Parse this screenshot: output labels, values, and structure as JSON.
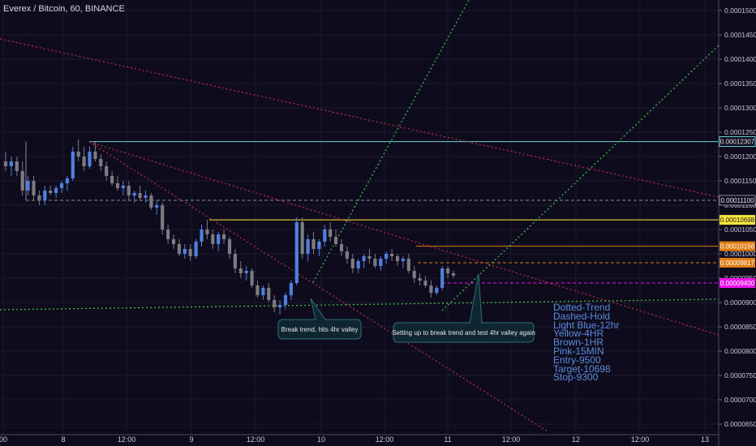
{
  "header": {
    "title": "Everex / Bitcoin, 60, BINANCE"
  },
  "colors": {
    "background": "#0e0b1c",
    "grid": "#1c1930",
    "candle_up": "#4f7fe0",
    "candle_down": "#7b7b80",
    "trend_red": "#c03040",
    "trend_green": "#3ccc44",
    "light_blue": "#6ed3d8",
    "yellow": "#ffe83c",
    "brown": "#e07c12",
    "pink": "#ee11ee",
    "dashed_gray": "#8c8c9c"
  },
  "chart_data": {
    "type": "candlestick",
    "title": "Everex / Bitcoin, 60, BINANCE",
    "y_axis": {
      "position": "right",
      "range": [
        6.45e-05,
        0.000151
      ],
      "ticks": [
        "0.00015000",
        "0.00014500",
        "0.00014000",
        "0.00013500",
        "0.00013000",
        "0.00012500",
        "0.00012000",
        "0.00011500",
        "0.00011000",
        "0.00010500",
        "0.00010000",
        "0.00009500",
        "0.00009000",
        "0.00008500",
        "0.00008000",
        "0.00007500",
        "0.00007000",
        "0.00006500"
      ]
    },
    "x_axis": {
      "ticks": [
        "00",
        "8",
        "12:00",
        "9",
        "12:00",
        "10",
        "12:00",
        "11",
        "12:00",
        "12",
        "12:00",
        "13"
      ]
    },
    "price_labels": [
      {
        "text": "0.00012307",
        "value": 0.00012307,
        "color": "light_blue"
      },
      {
        "text": "0.00011100",
        "value": 0.000111,
        "color": "dashed_gray"
      },
      {
        "text": "0.00010698",
        "value": 0.00010698,
        "color": "yellow"
      },
      {
        "text": "0.00010156",
        "value": 0.00010156,
        "color": "brown"
      },
      {
        "text": "0.00009817",
        "value": 9.817e-05,
        "color": "brown"
      },
      {
        "text": "0.00009400",
        "value": 9.4e-05,
        "color": "pink"
      }
    ],
    "candles": [
      {
        "o": 0.000119,
        "h": 0.000121,
        "l": 0.000117,
        "c": 0.000118
      },
      {
        "o": 0.000118,
        "h": 0.00012,
        "l": 0.000116,
        "c": 0.000119
      },
      {
        "o": 0.000119,
        "h": 0.00012,
        "l": 0.000116,
        "c": 0.000117
      },
      {
        "o": 0.000117,
        "h": 0.000119,
        "l": 0.000112,
        "c": 0.000113
      },
      {
        "o": 0.000113,
        "h": 0.000116,
        "l": 0.000112,
        "c": 0.000115
      },
      {
        "o": 0.000115,
        "h": 0.000116,
        "l": 0.000111,
        "c": 0.000112
      },
      {
        "o": 0.000112,
        "h": 0.000113,
        "l": 0.00011,
        "c": 0.000111
      },
      {
        "o": 0.000111,
        "h": 0.000114,
        "l": 0.00011,
        "c": 0.000113
      },
      {
        "o": 0.000113,
        "h": 0.000114,
        "l": 0.000112,
        "c": 0.0001125
      },
      {
        "o": 0.0001125,
        "h": 0.000114,
        "l": 0.0001115,
        "c": 0.0001135
      },
      {
        "o": 0.0001135,
        "h": 0.000115,
        "l": 0.0001125,
        "c": 0.0001145
      },
      {
        "o": 0.0001145,
        "h": 0.000116,
        "l": 0.000113,
        "c": 0.0001155
      },
      {
        "o": 0.0001155,
        "h": 0.000122,
        "l": 0.000115,
        "c": 0.000121
      },
      {
        "o": 0.000121,
        "h": 0.0001235,
        "l": 0.000119,
        "c": 0.00012
      },
      {
        "o": 0.00012,
        "h": 0.000122,
        "l": 0.000117,
        "c": 0.000118
      },
      {
        "o": 0.000118,
        "h": 0.000122,
        "l": 0.0001175,
        "c": 0.000121
      },
      {
        "o": 0.000121,
        "h": 0.000123,
        "l": 0.000119,
        "c": 0.0001195
      },
      {
        "o": 0.0001195,
        "h": 0.0001205,
        "l": 0.000117,
        "c": 0.000118
      },
      {
        "o": 0.000118,
        "h": 0.000119,
        "l": 0.000115,
        "c": 0.000116
      },
      {
        "o": 0.000116,
        "h": 0.000117,
        "l": 0.000114,
        "c": 0.0001145
      },
      {
        "o": 0.0001145,
        "h": 0.000116,
        "l": 0.000113,
        "c": 0.0001135
      },
      {
        "o": 0.0001135,
        "h": 0.000115,
        "l": 0.000112,
        "c": 0.000114
      },
      {
        "o": 0.000114,
        "h": 0.000115,
        "l": 0.000111,
        "c": 0.000112
      },
      {
        "o": 0.000112,
        "h": 0.000113,
        "l": 0.0001105,
        "c": 0.0001125
      },
      {
        "o": 0.0001125,
        "h": 0.000114,
        "l": 0.000111,
        "c": 0.0001115
      },
      {
        "o": 0.0001115,
        "h": 0.000113,
        "l": 0.0001105,
        "c": 0.000112
      },
      {
        "o": 0.000112,
        "h": 0.0001125,
        "l": 0.000109,
        "c": 0.0001095
      },
      {
        "o": 0.0001095,
        "h": 0.000111,
        "l": 0.000108,
        "c": 0.00011
      },
      {
        "o": 0.00011,
        "h": 0.0001105,
        "l": 0.000104,
        "c": 0.000105
      },
      {
        "o": 0.000105,
        "h": 0.000106,
        "l": 0.000102,
        "c": 0.000103
      },
      {
        "o": 0.000103,
        "h": 0.000104,
        "l": 0.000101,
        "c": 0.000102
      },
      {
        "o": 0.000102,
        "h": 0.000103,
        "l": 9.95e-05,
        "c": 0.0001
      },
      {
        "o": 0.0001,
        "h": 0.000102,
        "l": 9.9e-05,
        "c": 0.000101
      },
      {
        "o": 0.000101,
        "h": 0.000102,
        "l": 9.85e-05,
        "c": 9.95e-05
      },
      {
        "o": 9.95e-05,
        "h": 0.000103,
        "l": 9.9e-05,
        "c": 0.0001025
      },
      {
        "o": 0.0001025,
        "h": 0.000106,
        "l": 0.0001015,
        "c": 0.000105
      },
      {
        "o": 0.000105,
        "h": 0.000107,
        "l": 0.000103,
        "c": 0.000104
      },
      {
        "o": 0.000104,
        "h": 0.000105,
        "l": 0.000101,
        "c": 0.000102
      },
      {
        "o": 0.000102,
        "h": 0.0001045,
        "l": 0.0001005,
        "c": 0.000104
      },
      {
        "o": 0.000104,
        "h": 0.000105,
        "l": 0.000102,
        "c": 0.000103
      },
      {
        "o": 0.000103,
        "h": 0.0001035,
        "l": 9.9e-05,
        "c": 0.0001
      },
      {
        "o": 0.0001,
        "h": 0.000101,
        "l": 9.6e-05,
        "c": 9.7e-05
      },
      {
        "o": 9.7e-05,
        "h": 9.85e-05,
        "l": 9.5e-05,
        "c": 9.6e-05
      },
      {
        "o": 9.6e-05,
        "h": 9.75e-05,
        "l": 9.45e-05,
        "c": 9.65e-05
      },
      {
        "o": 9.65e-05,
        "h": 9.7e-05,
        "l": 9.3e-05,
        "c": 9.35e-05
      },
      {
        "o": 9.35e-05,
        "h": 9.45e-05,
        "l": 9.1e-05,
        "c": 9.15e-05
      },
      {
        "o": 9.15e-05,
        "h": 9.35e-05,
        "l": 9.05e-05,
        "c": 9.3e-05
      },
      {
        "o": 9.3e-05,
        "h": 9.4e-05,
        "l": 9e-05,
        "c": 9.05e-05
      },
      {
        "o": 9.05e-05,
        "h": 9.15e-05,
        "l": 8.8e-05,
        "c": 8.9e-05
      },
      {
        "o": 8.9e-05,
        "h": 9.05e-05,
        "l": 8.75e-05,
        "c": 8.95e-05
      },
      {
        "o": 8.95e-05,
        "h": 9.2e-05,
        "l": 8.85e-05,
        "c": 9.15e-05
      },
      {
        "o": 9.15e-05,
        "h": 9.45e-05,
        "l": 9.05e-05,
        "c": 9.4e-05
      },
      {
        "o": 9.4e-05,
        "h": 0.0001075,
        "l": 9.35e-05,
        "c": 0.0001065
      },
      {
        "o": 0.0001065,
        "h": 0.0001075,
        "l": 9.9e-05,
        "c": 0.0001
      },
      {
        "o": 0.0001,
        "h": 0.000104,
        "l": 9.85e-05,
        "c": 0.000103
      },
      {
        "o": 0.000103,
        "h": 0.0001045,
        "l": 0.0001,
        "c": 0.000101
      },
      {
        "o": 0.000101,
        "h": 0.000103,
        "l": 9.95e-05,
        "c": 0.0001025
      },
      {
        "o": 0.0001025,
        "h": 0.000106,
        "l": 0.0001015,
        "c": 0.000105
      },
      {
        "o": 0.000105,
        "h": 0.0001065,
        "l": 0.0001025,
        "c": 0.0001035
      },
      {
        "o": 0.0001035,
        "h": 0.000105,
        "l": 0.0001015,
        "c": 0.000102
      },
      {
        "o": 0.000102,
        "h": 0.000103,
        "l": 9.95e-05,
        "c": 0.0001005
      },
      {
        "o": 0.0001005,
        "h": 0.0001015,
        "l": 9.8e-05,
        "c": 9.9e-05
      },
      {
        "o": 9.9e-05,
        "h": 0.0001,
        "l": 9.6e-05,
        "c": 9.7e-05
      },
      {
        "o": 9.7e-05,
        "h": 9.9e-05,
        "l": 9.6e-05,
        "c": 9.85e-05
      },
      {
        "o": 9.85e-05,
        "h": 0.0001,
        "l": 9.7e-05,
        "c": 9.95e-05
      },
      {
        "o": 9.95e-05,
        "h": 0.000101,
        "l": 9.8e-05,
        "c": 9.9e-05
      },
      {
        "o": 9.9e-05,
        "h": 0.0001,
        "l": 9.7e-05,
        "c": 9.75e-05
      },
      {
        "o": 9.75e-05,
        "h": 9.95e-05,
        "l": 9.65e-05,
        "c": 9.9e-05
      },
      {
        "o": 9.9e-05,
        "h": 0.0001005,
        "l": 9.8e-05,
        "c": 0.0001
      },
      {
        "o": 0.0001,
        "h": 0.000101,
        "l": 9.85e-05,
        "c": 9.95e-05
      },
      {
        "o": 9.95e-05,
        "h": 0.0001,
        "l": 9.75e-05,
        "c": 9.85e-05
      },
      {
        "o": 9.85e-05,
        "h": 9.95e-05,
        "l": 9.7e-05,
        "c": 9.9e-05
      },
      {
        "o": 9.9e-05,
        "h": 0.0001,
        "l": 9.6e-05,
        "c": 9.65e-05
      },
      {
        "o": 9.65e-05,
        "h": 9.75e-05,
        "l": 9.4e-05,
        "c": 9.5e-05
      },
      {
        "o": 9.5e-05,
        "h": 9.6e-05,
        "l": 9.35e-05,
        "c": 9.45e-05
      },
      {
        "o": 9.45e-05,
        "h": 9.55e-05,
        "l": 9.3e-05,
        "c": 9.35e-05
      },
      {
        "o": 9.35e-05,
        "h": 9.45e-05,
        "l": 9.1e-05,
        "c": 9.2e-05
      },
      {
        "o": 9.2e-05,
        "h": 9.35e-05,
        "l": 9.15e-05,
        "c": 9.3e-05
      },
      {
        "o": 9.3e-05,
        "h": 9.75e-05,
        "l": 9.25e-05,
        "c": 9.7e-05
      },
      {
        "o": 9.7e-05,
        "h": 9.75e-05,
        "l": 9.5e-05,
        "c": 9.6e-05
      },
      {
        "o": 9.6e-05,
        "h": 9.65e-05,
        "l": 9.5e-05,
        "c": 9.55e-05
      }
    ],
    "horizontal_levels": [
      {
        "value": 0.00012307,
        "color": "light_blue",
        "style": "solid"
      },
      {
        "value": 0.000111,
        "color": "dashed_gray",
        "style": "dashed"
      },
      {
        "value": 0.00010698,
        "color": "yellow",
        "style": "solid"
      },
      {
        "value": 0.00010156,
        "color": "brown",
        "style": "solid"
      },
      {
        "value": 9.817e-05,
        "color": "brown",
        "style": "dashed"
      },
      {
        "value": 9.4e-05,
        "color": "pink",
        "style": "dashed"
      }
    ],
    "annotations": [
      {
        "text": "Break trend, hits 4hr valley"
      },
      {
        "text": "Setting up to break trend and test 4hr valley again"
      }
    ],
    "legend": [
      "Dotted-Trend",
      "Dashed-Hold",
      "Light Blue-12hr",
      "Yellow-4HR",
      "Brown-1HR",
      "Pink-15MIN",
      "Entry-9500",
      "Target-10698",
      "Stop-9300"
    ]
  }
}
